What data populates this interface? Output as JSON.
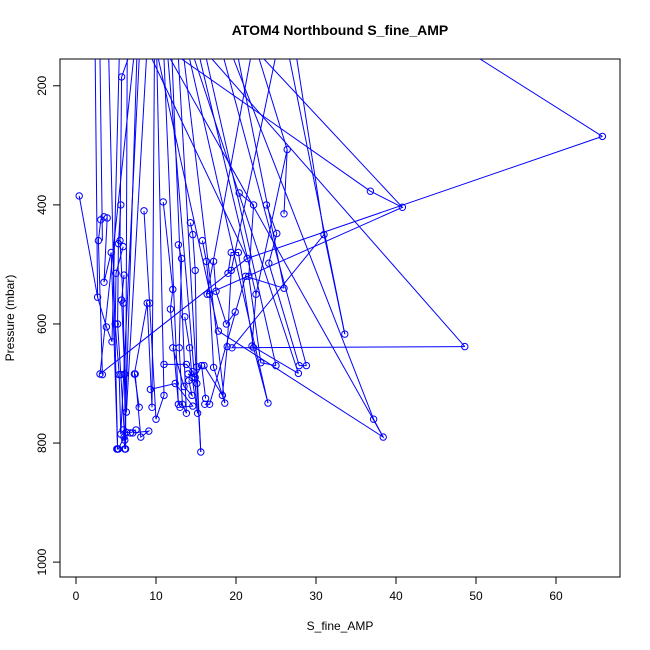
{
  "chart_data": {
    "type": "line",
    "title": "ATOM4 Northbound S_fine_AMP",
    "xlabel": "S_fine_AMP",
    "ylabel": "Pressure (mbar)",
    "xlim": [
      -2,
      68
    ],
    "ylim": [
      1025,
      155
    ],
    "y_reversed": true,
    "x_ticks": [
      0,
      10,
      20,
      30,
      40,
      50,
      60
    ],
    "y_ticks": [
      200,
      400,
      600,
      800,
      1000
    ],
    "grid": false,
    "legend": "none",
    "marker": "open-circle",
    "line_color": "#0000ff",
    "profiles": [
      {
        "x": [
          0.4,
          2.7,
          3.8,
          4.5
        ],
        "y": [
          385,
          555,
          605,
          630
        ]
      },
      {
        "x": [
          3.5,
          3.1,
          2.8,
          3.3
        ],
        "y": [
          420,
          425,
          460,
          685
        ]
      },
      {
        "x": [
          3.9,
          3.5,
          4.4,
          5.2
        ],
        "y": [
          422,
          530,
          480,
          810
        ]
      },
      {
        "x": [
          5.7,
          5.5,
          5.9,
          6.2
        ],
        "y": [
          185,
          460,
          565,
          810
        ]
      },
      {
        "x": [
          5.6,
          5.3,
          5.2,
          5.6,
          6.1
        ],
        "y": [
          400,
          465,
          600,
          685,
          795
        ]
      },
      {
        "x": [
          5.9,
          5.0,
          4.9,
          5.4,
          5.6
        ],
        "y": [
          470,
          515,
          600,
          685,
          785
        ]
      },
      {
        "x": [
          6.0,
          5.7,
          6.1,
          6.3
        ],
        "y": [
          518,
          560,
          684,
          748
        ]
      },
      {
        "x": [
          7.9,
          7.3,
          8.9,
          9.5
        ],
        "y": [
          740,
          684,
          565,
          740
        ]
      },
      {
        "x": [
          8.5,
          9.2,
          10.0,
          11.0
        ],
        "y": [
          410,
          565,
          760,
          720
        ]
      },
      {
        "x": [
          10.9,
          12.1,
          11.8,
          12.8
        ],
        "y": [
          395,
          542,
          575,
          735
        ]
      },
      {
        "x": [
          12.8,
          13.2,
          12.9,
          13.3,
          13.8
        ],
        "y": [
          467,
          490,
          640,
          735,
          750
        ]
      },
      {
        "x": [
          13.6,
          14.2,
          14.5,
          15.2
        ],
        "y": [
          588,
          640,
          690,
          750
        ]
      },
      {
        "x": [
          14.3,
          14.6,
          14.9,
          15.1,
          15.6
        ],
        "y": [
          430,
          450,
          510,
          672,
          815
        ]
      },
      {
        "x": [
          15.8,
          16.3,
          16.7,
          17.2,
          18.6
        ],
        "y": [
          460,
          495,
          550,
          673,
          733
        ]
      },
      {
        "x": [
          19.0,
          19.4,
          20.3,
          22.2,
          24.0
        ],
        "y": [
          515,
          480,
          480,
          640,
          733
        ]
      },
      {
        "x": [
          20.4,
          22.2,
          21.6,
          23.1,
          25.0
        ],
        "y": [
          380,
          400,
          520,
          665,
          670
        ]
      },
      {
        "x": [
          23.8,
          25.1,
          24.1,
          27.9,
          28.8
        ],
        "y": [
          400,
          448,
          498,
          670,
          670
        ]
      },
      {
        "x": [
          26.0,
          26.4,
          22.5,
          22.0,
          27.8
        ],
        "y": [
          415,
          307,
          550,
          637,
          683
        ]
      },
      {
        "x": [
          33.6,
          31.0,
          19.5,
          48.6
        ],
        "y": [
          617,
          450,
          640,
          638
        ]
      },
      {
        "x": [
          36.8,
          40.8,
          16.4
        ],
        "y": [
          377,
          404,
          550
        ]
      },
      {
        "x": [
          65.8,
          21.4,
          3.0
        ],
        "y": [
          285,
          490,
          684
        ]
      },
      {
        "x": [
          37.2,
          38.4,
          17.8
        ],
        "y": [
          760,
          790,
          612
        ]
      },
      {
        "x": [
          7.4,
          8.1,
          9.1,
          7.1
        ],
        "y": [
          684,
          790,
          780,
          783
        ]
      },
      {
        "x": [
          5.9,
          6.3,
          6.8,
          7.5
        ],
        "y": [
          778,
          782,
          783,
          778
        ]
      },
      {
        "x": [
          14.0,
          14.9,
          15.7,
          16.2
        ],
        "y": [
          684,
          690,
          670,
          725
        ]
      },
      {
        "x": [
          16.0,
          18.3,
          18.9,
          19.4
        ],
        "y": [
          670,
          720,
          638,
          510
        ]
      },
      {
        "x": [
          12.1,
          13.5,
          14.5,
          14.1
        ],
        "y": [
          640,
          705,
          720,
          695
        ]
      },
      {
        "x": [
          11.0,
          13.8,
          14.6,
          15.1
        ],
        "y": [
          668,
          668,
          680,
          700
        ]
      },
      {
        "x": [
          17.2,
          17.5,
          18.8,
          19.9
        ],
        "y": [
          495,
          545,
          600,
          580
        ]
      },
      {
        "x": [
          5.1,
          5.3,
          6.0,
          6.1
        ],
        "y": [
          810,
          810,
          790,
          810
        ]
      },
      {
        "x": [
          9.3,
          12.4,
          14.6,
          13.0
        ],
        "y": [
          710,
          700,
          738,
          740
        ]
      },
      {
        "x": [
          16.1,
          16.7,
          21.2,
          26.0
        ],
        "y": [
          735,
          735,
          520,
          540
        ]
      }
    ],
    "offchart_segments": [
      {
        "x": [
          2.7,
          2.4
        ],
        "y": [
          555,
          155
        ]
      },
      {
        "x": [
          3.3,
          3.0
        ],
        "y": [
          460,
          155
        ]
      },
      {
        "x": [
          4.5,
          5.4
        ],
        "y": [
          630,
          155
        ]
      },
      {
        "x": [
          5.2,
          4.1
        ],
        "y": [
          810,
          155
        ]
      },
      {
        "x": [
          6.2,
          6.4
        ],
        "y": [
          810,
          155
        ]
      },
      {
        "x": [
          6.1,
          7.6
        ],
        "y": [
          795,
          155
        ]
      },
      {
        "x": [
          5.6,
          7.9
        ],
        "y": [
          785,
          155
        ]
      },
      {
        "x": [
          6.3,
          8.8
        ],
        "y": [
          748,
          155
        ]
      },
      {
        "x": [
          9.5,
          9.8
        ],
        "y": [
          740,
          155
        ]
      },
      {
        "x": [
          11.0,
          10.1
        ],
        "y": [
          720,
          155
        ]
      },
      {
        "x": [
          12.8,
          11.0
        ],
        "y": [
          735,
          155
        ]
      },
      {
        "x": [
          13.8,
          12.0
        ],
        "y": [
          750,
          155
        ]
      },
      {
        "x": [
          15.2,
          11.5
        ],
        "y": [
          750,
          155
        ]
      },
      {
        "x": [
          15.6,
          12.8
        ],
        "y": [
          815,
          155
        ]
      },
      {
        "x": [
          18.6,
          13.5
        ],
        "y": [
          733,
          155
        ]
      },
      {
        "x": [
          24.0,
          14.2
        ],
        "y": [
          733,
          155
        ]
      },
      {
        "x": [
          25.0,
          16.3
        ],
        "y": [
          670,
          155
        ]
      },
      {
        "x": [
          28.8,
          18.5
        ],
        "y": [
          670,
          155
        ]
      },
      {
        "x": [
          27.8,
          14.8
        ],
        "y": [
          683,
          155
        ]
      },
      {
        "x": [
          48.6,
          17.0
        ],
        "y": [
          638,
          155
        ]
      },
      {
        "x": [
          16.4,
          21.8
        ],
        "y": [
          550,
          155
        ]
      },
      {
        "x": [
          3.0,
          7.2
        ],
        "y": [
          684,
          155
        ]
      },
      {
        "x": [
          17.8,
          10.3
        ],
        "y": [
          612,
          155
        ]
      },
      {
        "x": [
          36.8,
          13.2
        ],
        "y": [
          377,
          155
        ]
      },
      {
        "x": [
          40.8,
          23.5
        ],
        "y": [
          404,
          155
        ]
      },
      {
        "x": [
          65.8,
          50.5
        ],
        "y": [
          285,
          155
        ]
      },
      {
        "x": [
          33.6,
          26.7
        ],
        "y": [
          617,
          155
        ]
      },
      {
        "x": [
          37.2,
          19.7
        ],
        "y": [
          760,
          155
        ]
      },
      {
        "x": [
          38.4,
          11.8
        ],
        "y": [
          790,
          155
        ]
      },
      {
        "x": [
          26.4,
          22.9
        ],
        "y": [
          307,
          155
        ]
      },
      {
        "x": [
          5.7,
          6.5
        ],
        "y": [
          185,
          155
        ]
      },
      {
        "x": [
          22.5,
          15.5
        ],
        "y": [
          550,
          155
        ]
      },
      {
        "x": [
          21.4,
          9.5
        ],
        "y": [
          490,
          155
        ]
      },
      {
        "x": [
          31.0,
          27.6
        ],
        "y": [
          450,
          155
        ]
      },
      {
        "x": [
          19.4,
          24.9
        ],
        "y": [
          510,
          155
        ]
      },
      {
        "x": [
          26.0,
          20.3
        ],
        "y": [
          540,
          155
        ]
      }
    ]
  }
}
